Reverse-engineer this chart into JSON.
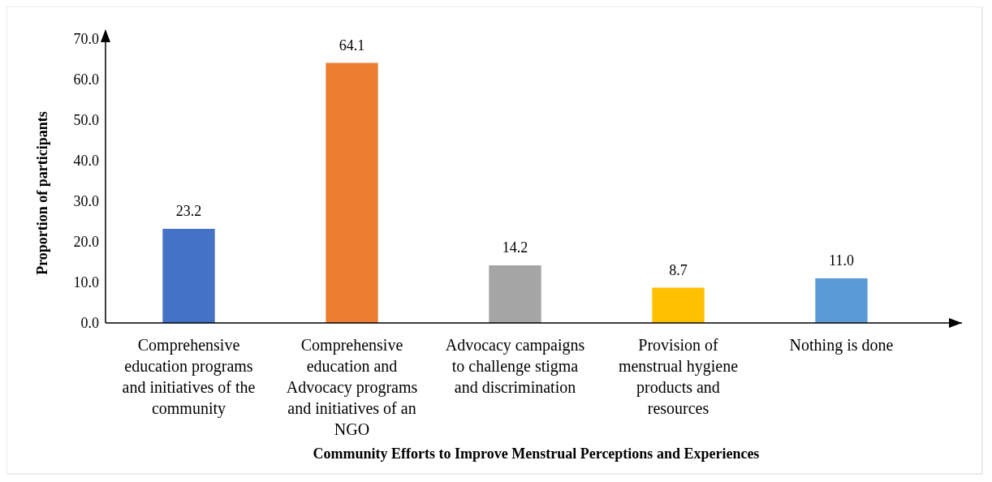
{
  "chart_data": {
    "type": "bar",
    "title": "Community Efforts to Improve Menstrual Perceptions and Experiences",
    "ylabel": "Proportion of participants",
    "categories": [
      "Comprehensive education programs and initiatives of the community",
      "Comprehensive education and Advocacy programs and initiatives of an NGO",
      "Advocacy campaigns to challenge stigma and discrimination",
      "Provision of menstrual hygiene products and resources",
      "Nothing is done"
    ],
    "values": [
      23.2,
      64.1,
      14.2,
      8.7,
      11.0
    ],
    "value_labels": [
      "23.2",
      "64.1",
      "14.2",
      "8.7",
      "11.0"
    ],
    "colors": [
      "#4472c4",
      "#ed7d31",
      "#a5a5a5",
      "#ffc000",
      "#5b9bd5"
    ],
    "ylim": [
      0,
      70
    ],
    "yticks": [
      {
        "value": 0,
        "label": "0.0"
      },
      {
        "value": 10,
        "label": "10.0"
      },
      {
        "value": 20,
        "label": "20.0"
      },
      {
        "value": 30,
        "label": "30.0"
      },
      {
        "value": 40,
        "label": "40.0"
      },
      {
        "value": 50,
        "label": "50.0"
      },
      {
        "value": 60,
        "label": "60.0"
      },
      {
        "value": 70,
        "label": "70.0"
      }
    ],
    "grid": false
  }
}
